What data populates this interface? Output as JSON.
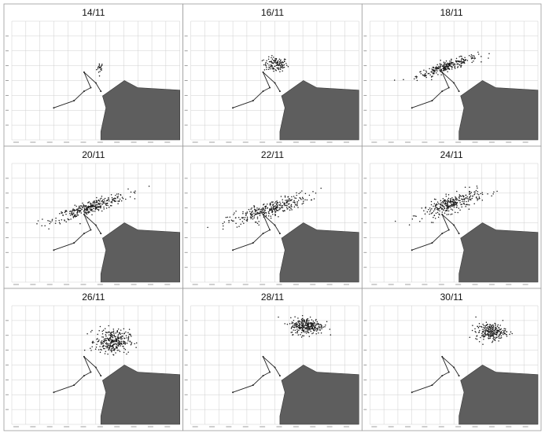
{
  "figure": {
    "rows": 3,
    "cols": 3,
    "colors": {
      "land": "#5e5e5e",
      "grid": "#cfcfcf",
      "particles": "#1a1a1a",
      "track": "#222222",
      "frame": "#9a9a9a"
    }
  },
  "chart_data": [
    {
      "type": "scatter",
      "title": "14/11",
      "grid": true,
      "xlim": [
        0,
        10
      ],
      "ylim": [
        0,
        10
      ],
      "cluster": {
        "cx": 5.25,
        "cy": 6.05,
        "sx": 0.1,
        "sy": 0.25,
        "n": 20,
        "spread_along_line": false
      }
    },
    {
      "type": "scatter",
      "title": "16/11",
      "grid": true,
      "xlim": [
        0,
        10
      ],
      "ylim": [
        0,
        10
      ],
      "cluster": {
        "cx": 5.05,
        "cy": 6.35,
        "sx": 0.35,
        "sy": 0.3,
        "n": 120,
        "spread_along_line": false
      }
    },
    {
      "type": "scatter",
      "title": "18/11",
      "grid": true,
      "xlim": [
        0,
        10
      ],
      "ylim": [
        0,
        10
      ],
      "cluster": {
        "cx": 4.6,
        "cy": 6.2,
        "sx": 0.9,
        "sy": 0.35,
        "n": 260,
        "spread_along_line": true
      }
    },
    {
      "type": "scatter",
      "title": "20/11",
      "grid": true,
      "xlim": [
        0,
        10
      ],
      "ylim": [
        0,
        10
      ],
      "cluster": {
        "cx": 4.7,
        "cy": 6.3,
        "sx": 1.1,
        "sy": 0.45,
        "n": 320,
        "spread_along_line": true
      }
    },
    {
      "type": "scatter",
      "title": "22/11",
      "grid": true,
      "xlim": [
        0,
        10
      ],
      "ylim": [
        0,
        10
      ],
      "cluster": {
        "cx": 4.6,
        "cy": 6.1,
        "sx": 1.2,
        "sy": 0.55,
        "n": 320,
        "spread_along_line": true
      }
    },
    {
      "type": "scatter",
      "title": "24/11",
      "grid": true,
      "xlim": [
        0,
        10
      ],
      "ylim": [
        0,
        10
      ],
      "cluster": {
        "cx": 4.9,
        "cy": 6.6,
        "sx": 0.9,
        "sy": 0.6,
        "n": 300,
        "spread_along_line": true
      }
    },
    {
      "type": "scatter",
      "title": "26/11",
      "grid": true,
      "xlim": [
        0,
        10
      ],
      "ylim": [
        0,
        10
      ],
      "cluster": {
        "cx": 6.0,
        "cy": 7.0,
        "sx": 0.5,
        "sy": 0.5,
        "n": 300,
        "spread_along_line": false
      }
    },
    {
      "type": "scatter",
      "title": "28/11",
      "grid": true,
      "xlim": [
        0,
        10
      ],
      "ylim": [
        0,
        10
      ],
      "cluster": {
        "cx": 6.9,
        "cy": 8.3,
        "sx": 0.5,
        "sy": 0.35,
        "n": 280,
        "spread_along_line": false
      }
    },
    {
      "type": "scatter",
      "title": "30/11",
      "grid": true,
      "xlim": [
        0,
        10
      ],
      "ylim": [
        0,
        10
      ],
      "cluster": {
        "cx": 7.2,
        "cy": 7.8,
        "sx": 0.45,
        "sy": 0.35,
        "n": 240,
        "spread_along_line": false
      }
    }
  ]
}
